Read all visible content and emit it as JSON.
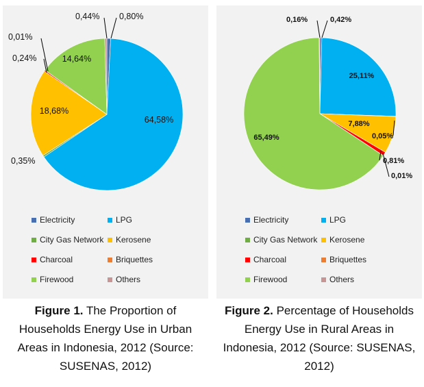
{
  "colors": {
    "Electricity": "#4a6fb0",
    "LPG": "#00b0f0",
    "City Gas Network": "#70ad47",
    "Kerosene": "#ffc000",
    "Charcoal": "#ff0000",
    "Briquettes": "#ed7d31",
    "Firewood": "#92d050",
    "Others": "#c99594"
  },
  "chart_data": [
    {
      "type": "pie",
      "title": "",
      "categories": [
        "Electricity",
        "LPG",
        "City Gas Network",
        "Kerosene",
        "Charcoal",
        "Briquettes",
        "Firewood",
        "Others"
      ],
      "values": [
        0.8,
        64.58,
        0.35,
        18.68,
        0.24,
        0.01,
        14.64,
        0.44
      ],
      "labels": [
        "0,80%",
        "64,58%",
        "0,35%",
        "18,68%",
        "0,24%",
        "0,01%",
        "14,64%",
        "0,44%"
      ],
      "legend": [
        "Electricity",
        "LPG",
        "City Gas Network",
        "Kerosene",
        "Charcoal",
        "Briquettes",
        "Firewood",
        "Others"
      ],
      "legend_position": "bottom"
    },
    {
      "type": "pie",
      "title": "",
      "categories": [
        "Electricity",
        "LPG",
        "City Gas Network",
        "Kerosene",
        "Charcoal",
        "Briquettes",
        "Firewood",
        "Others"
      ],
      "values": [
        0.42,
        25.11,
        0.05,
        7.88,
        0.81,
        0.01,
        65.49,
        0.16
      ],
      "labels": [
        "0,42%",
        "25,11%",
        "0,05%",
        "7,88%",
        "0,81%",
        "0,01%",
        "65,49%",
        "0,16%"
      ],
      "legend": [
        "Electricity",
        "LPG",
        "City Gas Network",
        "Kerosene",
        "Charcoal",
        "Briquettes",
        "Firewood",
        "Others"
      ],
      "legend_position": "bottom"
    }
  ],
  "captions": [
    {
      "fig": "Figure 1.",
      "text": " The Proportion of Households Energy Use in Urban Areas in Indonesia, 2012 (Source: SUSENAS, 2012)"
    },
    {
      "fig": "Figure 2.",
      "text": " Percentage of Households Energy Use in Rural Areas in Indonesia, 2012 (Source: SUSENAS, 2012)"
    }
  ]
}
